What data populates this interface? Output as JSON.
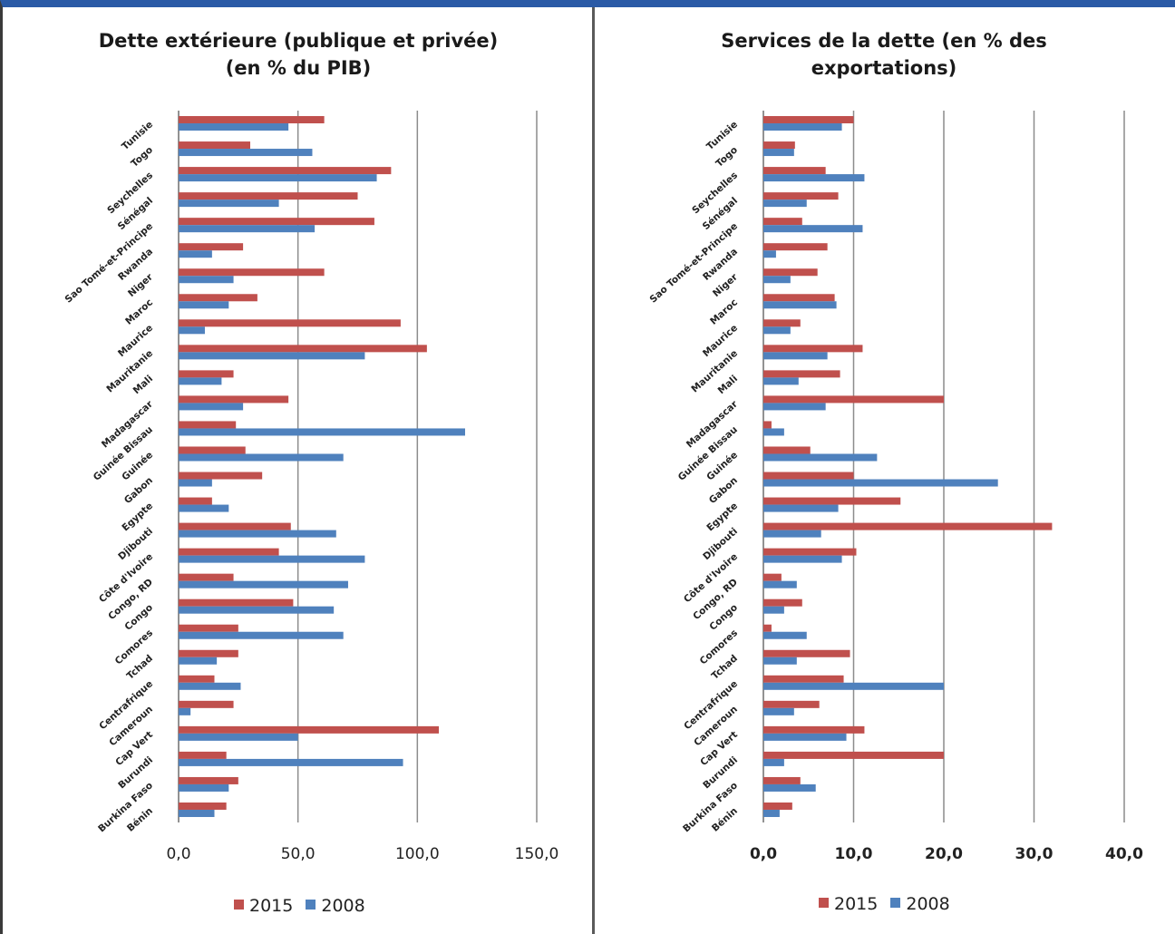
{
  "colors": {
    "s2015": "#c0504d",
    "s2008": "#4f81bd",
    "grid": "#8c8c8c",
    "frame_top": "#2a5aa6"
  },
  "chart_data": [
    {
      "type": "bar",
      "orientation": "horizontal",
      "title_line1": "Dette extérieure (publique et privée)",
      "title_line2": "(en % du PIB)",
      "categories": [
        "Bénin",
        "Burkina Faso",
        "Burundi",
        "Cap Vert",
        "Cameroun",
        "Centrafrique",
        "Tchad",
        "Comores",
        "Congo",
        "Congo, RD",
        "Côte d'Ivoire",
        "Djibouti",
        "Egypte",
        "Gabon",
        "Guinée",
        "Guinée Bissau",
        "Madagascar",
        "Mali",
        "Mauritanie",
        "Maurice",
        "Maroc",
        "Niger",
        "Rwanda",
        "Sao Tomé-et-Principe",
        "Sénégal",
        "Seychelles",
        "Togo",
        "Tunisie"
      ],
      "series": [
        {
          "name": "2015",
          "values": [
            20,
            25,
            20,
            109,
            23,
            15,
            25,
            25,
            48,
            23,
            42,
            47,
            14,
            35,
            28,
            24,
            46,
            23,
            104,
            93,
            33,
            61,
            27,
            82,
            75,
            89,
            30,
            61
          ]
        },
        {
          "name": "2008",
          "values": [
            15,
            21,
            94,
            50,
            5,
            26,
            16,
            69,
            65,
            71,
            78,
            66,
            21,
            14,
            69,
            120,
            27,
            18,
            78,
            11,
            21,
            23,
            14,
            57,
            42,
            83,
            56,
            46
          ]
        }
      ],
      "xlim": [
        0,
        150
      ],
      "xticks": [
        "0,0",
        "50,0",
        "100,0",
        "150,0"
      ],
      "tick_values": [
        0,
        50,
        100,
        150
      ],
      "grid": true,
      "legend": [
        "2015",
        "2008"
      ],
      "legend_position": "bottom"
    },
    {
      "type": "bar",
      "orientation": "horizontal",
      "title_line1": "Services de la dette (en % des",
      "title_line2": "exportations)",
      "categories": [
        "Bénin",
        "Burkina Faso",
        "Burundi",
        "Cap Vert",
        "Cameroun",
        "Centrafrique",
        "Tchad",
        "Comores",
        "Congo",
        "Congo, RD",
        "Côte d'Ivoire",
        "Djibouti",
        "Egypte",
        "Gabon",
        "Guinée",
        "Guinée Bissau",
        "Madagascar",
        "Mali",
        "Mauritanie",
        "Maurice",
        "Maroc",
        "Niger",
        "Rwanda",
        "Sao Tomé-et-Principe",
        "Sénégal",
        "Seychelles",
        "Togo",
        "Tunisie"
      ],
      "series": [
        {
          "name": "2015",
          "values": [
            3.2,
            4.1,
            20.0,
            11.2,
            6.2,
            8.9,
            9.6,
            0.9,
            4.3,
            2.0,
            10.3,
            32.0,
            15.2,
            10.0,
            5.2,
            0.9,
            20.0,
            8.5,
            11.0,
            4.1,
            7.9,
            6.0,
            7.1,
            4.3,
            8.3,
            6.9,
            3.5,
            10.0
          ]
        },
        {
          "name": "2008",
          "values": [
            1.8,
            5.8,
            2.3,
            9.2,
            3.4,
            20.0,
            3.7,
            4.8,
            2.3,
            3.7,
            8.7,
            6.4,
            8.3,
            26.0,
            12.6,
            2.3,
            6.9,
            3.9,
            7.1,
            3.0,
            8.1,
            3.0,
            1.4,
            11.0,
            4.8,
            11.2,
            3.4,
            8.7
          ]
        }
      ],
      "xlim": [
        0,
        40
      ],
      "xticks": [
        "0,0",
        "10,0",
        "20,0",
        "30,0",
        "40,0"
      ],
      "tick_values": [
        0,
        10,
        20,
        30,
        40
      ],
      "grid": true,
      "legend": [
        "2015",
        "2008"
      ],
      "legend_position": "bottom"
    }
  ]
}
